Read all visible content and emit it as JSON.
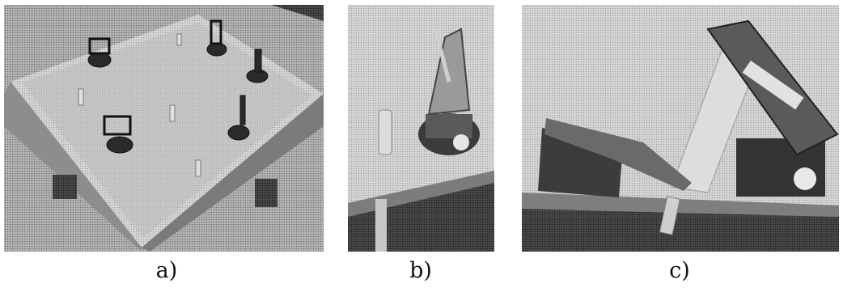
{
  "figure": {
    "panels": [
      {
        "caption": "a)"
      },
      {
        "caption": "b)"
      },
      {
        "caption": "c)"
      }
    ]
  },
  "colors": {
    "halftone_light": "#c8c8c8",
    "halftone_mid": "#8a8a8a",
    "halftone_dark": "#3a3a3a",
    "caption_text": "#111111"
  }
}
